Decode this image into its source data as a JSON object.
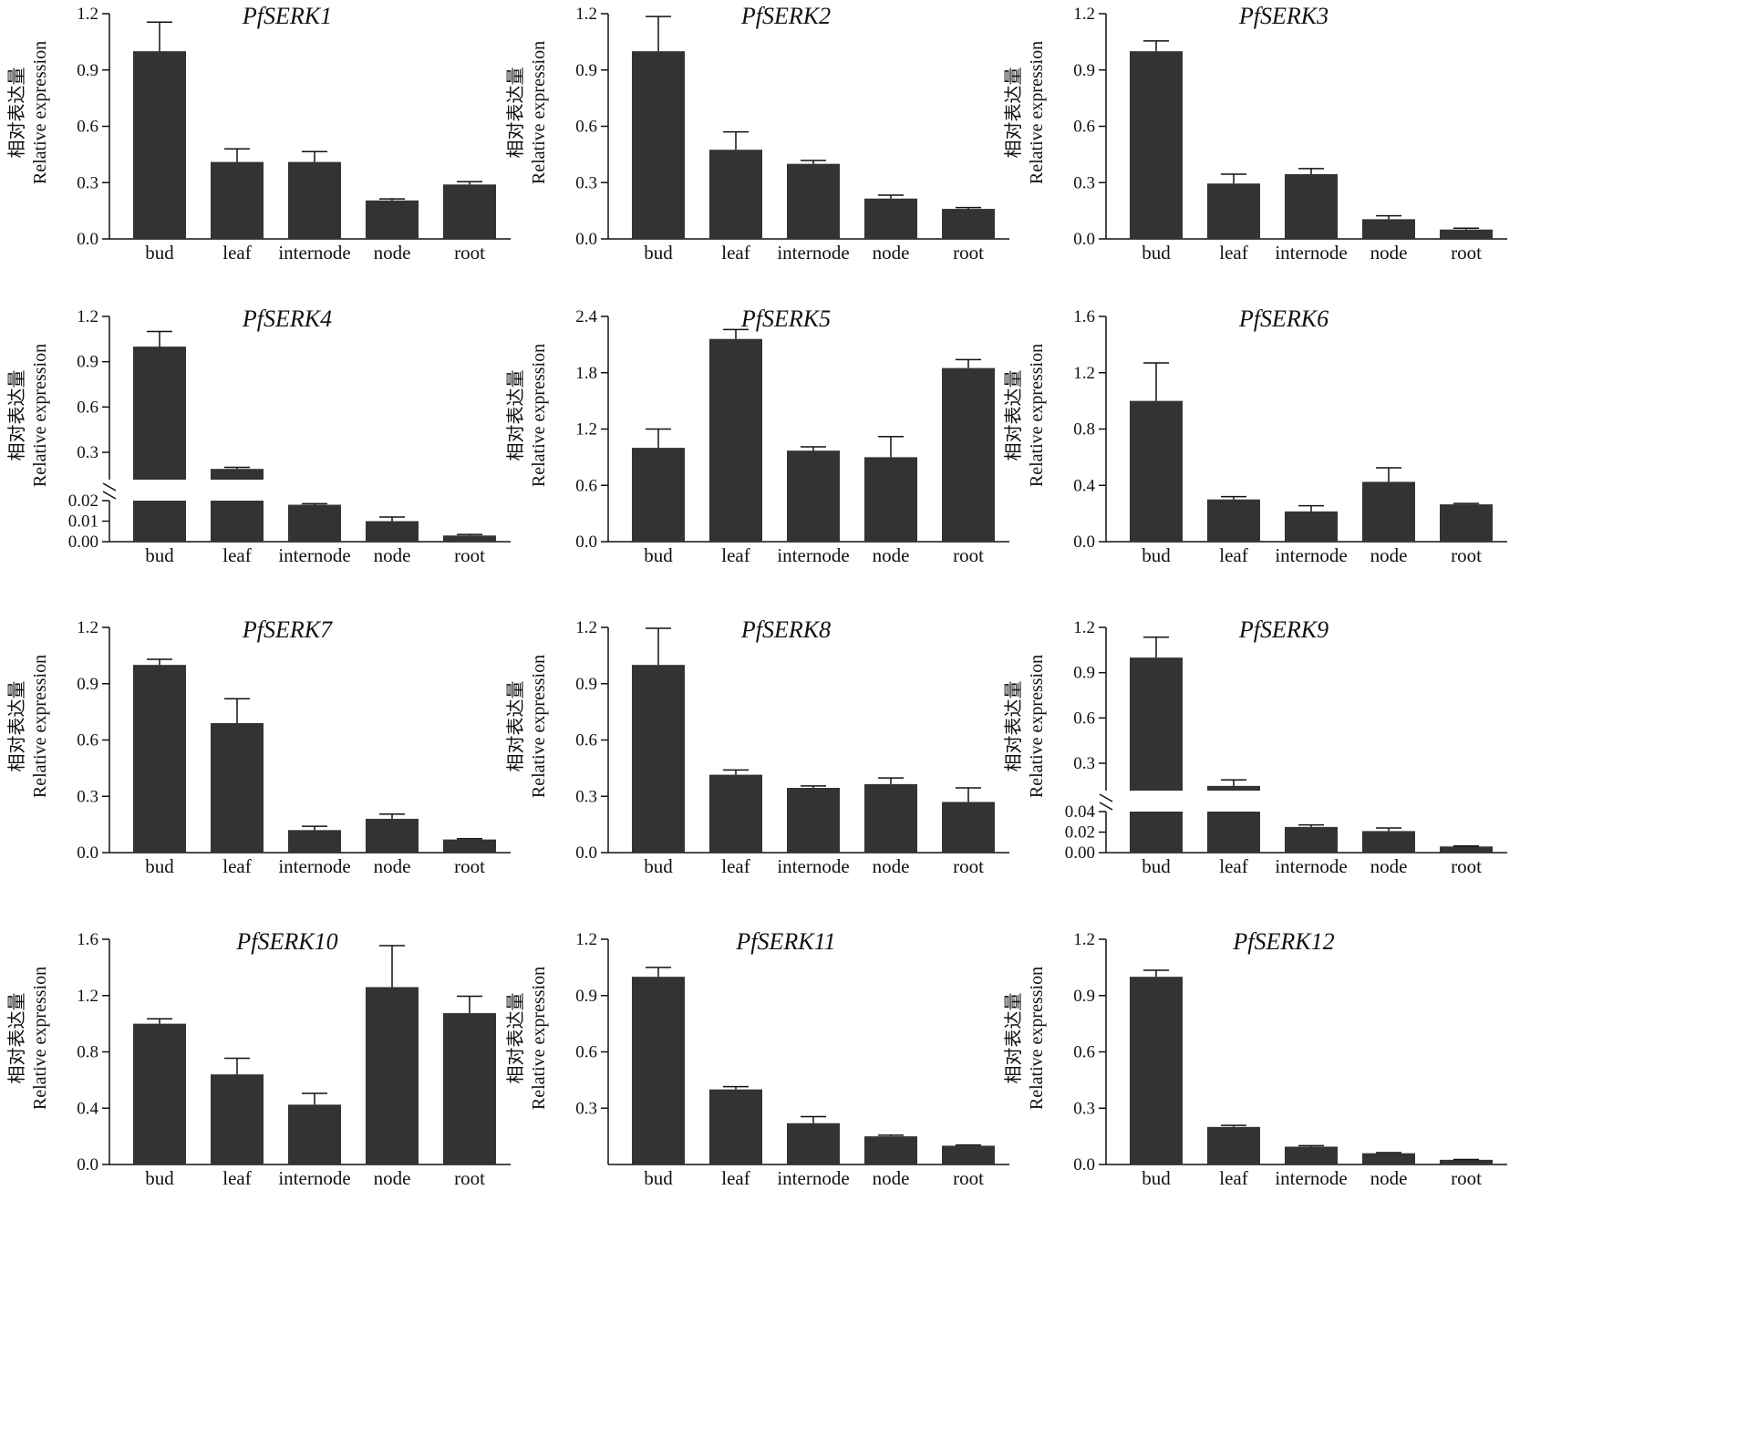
{
  "figure": {
    "ylabel_cn": "相对表达量",
    "ylabel_en": "Relative expression",
    "categories": [
      "bud",
      "leaf",
      "internode",
      "node",
      "root"
    ]
  },
  "chart_data": [
    {
      "type": "bar",
      "title": "PfSERK1",
      "categories": [
        "bud",
        "leaf",
        "internode",
        "node",
        "root"
      ],
      "values": [
        1.0,
        0.41,
        0.41,
        0.205,
        0.29
      ],
      "errors": [
        0.155,
        0.07,
        0.055,
        0.008,
        0.015
      ],
      "ylim": [
        0,
        1.2
      ],
      "yticks": [
        "0.0",
        "0.3",
        "0.6",
        "0.9",
        "1.2"
      ],
      "xlabel": "",
      "ylabel": "相对表达量 Relative expression"
    },
    {
      "type": "bar",
      "title": "PfSERK2",
      "categories": [
        "bud",
        "leaf",
        "internode",
        "node",
        "root"
      ],
      "values": [
        1.0,
        0.475,
        0.4,
        0.215,
        0.16
      ],
      "errors": [
        0.185,
        0.095,
        0.018,
        0.018,
        0.007
      ],
      "ylim": [
        0,
        1.2
      ],
      "yticks": [
        "0.0",
        "0.3",
        "0.6",
        "0.9",
        "1.2"
      ],
      "xlabel": "",
      "ylabel": "相对表达量 Relative expression"
    },
    {
      "type": "bar",
      "title": "PfSERK3",
      "categories": [
        "bud",
        "leaf",
        "internode",
        "node",
        "root"
      ],
      "values": [
        1.0,
        0.295,
        0.345,
        0.105,
        0.05
      ],
      "errors": [
        0.055,
        0.05,
        0.03,
        0.018,
        0.007
      ],
      "ylim": [
        0,
        1.2
      ],
      "yticks": [
        "0.0",
        "0.3",
        "0.6",
        "0.9",
        "1.2"
      ],
      "xlabel": "",
      "ylabel": "相对表达量 Relative expression"
    },
    {
      "type": "bar",
      "title": "PfSERK4",
      "categories": [
        "bud",
        "leaf",
        "internode",
        "node",
        "root"
      ],
      "values": [
        1.0,
        0.19,
        0.018,
        0.01,
        0.003
      ],
      "errors": [
        0.1,
        0.01,
        0.0005,
        0.002,
        0.0005
      ],
      "broken_axis": {
        "lower": [
          0,
          0.02
        ],
        "upper": [
          0,
          1.2
        ]
      },
      "yticks_lower": [
        "0.00",
        "0.01",
        "0.02"
      ],
      "yticks_upper": [
        "0.3",
        "0.6",
        "0.9",
        "1.2"
      ],
      "xlabel": "",
      "ylabel": "相对表达量 Relative expression"
    },
    {
      "type": "bar",
      "title": "PfSERK5",
      "categories": [
        "bud",
        "leaf",
        "internode",
        "node",
        "root"
      ],
      "values": [
        1.0,
        2.16,
        0.97,
        0.9,
        1.85
      ],
      "errors": [
        0.2,
        0.1,
        0.04,
        0.22,
        0.09
      ],
      "ylim": [
        0,
        2.4
      ],
      "yticks": [
        "0.0",
        "0.6",
        "1.2",
        "1.8",
        "2.4"
      ],
      "xlabel": "",
      "ylabel": "相对表达量 Relative expression"
    },
    {
      "type": "bar",
      "title": "PfSERK6",
      "categories": [
        "bud",
        "leaf",
        "internode",
        "node",
        "root"
      ],
      "values": [
        1.0,
        0.3,
        0.215,
        0.425,
        0.265
      ],
      "errors": [
        0.27,
        0.02,
        0.04,
        0.1,
        0.006
      ],
      "ylim": [
        0,
        1.6
      ],
      "yticks": [
        "0.0",
        "0.4",
        "0.8",
        "1.2",
        "1.6"
      ],
      "xlabel": "",
      "ylabel": "相对表达量 Relative expression"
    },
    {
      "type": "bar",
      "title": "PfSERK7",
      "categories": [
        "bud",
        "leaf",
        "internode",
        "node",
        "root"
      ],
      "values": [
        1.0,
        0.69,
        0.12,
        0.18,
        0.07
      ],
      "errors": [
        0.03,
        0.13,
        0.02,
        0.025,
        0.004
      ],
      "ylim": [
        0,
        1.2
      ],
      "yticks": [
        "0.0",
        "0.3",
        "0.6",
        "0.9",
        "1.2"
      ],
      "xlabel": "",
      "ylabel": "相对表达量 Relative expression"
    },
    {
      "type": "bar",
      "title": "PfSERK8",
      "categories": [
        "bud",
        "leaf",
        "internode",
        "node",
        "root"
      ],
      "values": [
        1.0,
        0.415,
        0.345,
        0.365,
        0.27
      ],
      "errors": [
        0.195,
        0.025,
        0.01,
        0.033,
        0.075
      ],
      "ylim": [
        0,
        1.2
      ],
      "yticks": [
        "0.0",
        "0.3",
        "0.6",
        "0.9",
        "1.2"
      ],
      "xlabel": "",
      "ylabel": "相对表达量 Relative expression"
    },
    {
      "type": "bar",
      "title": "PfSERK9",
      "categories": [
        "bud",
        "leaf",
        "internode",
        "node",
        "root"
      ],
      "values": [
        1.0,
        0.15,
        0.025,
        0.021,
        0.006
      ],
      "errors": [
        0.135,
        0.04,
        0.002,
        0.003,
        0.0005
      ],
      "broken_axis": {
        "lower": [
          0,
          0.04
        ],
        "upper": [
          0,
          1.2
        ]
      },
      "yticks_lower": [
        "0.00",
        "0.02",
        "0.04"
      ],
      "yticks_upper": [
        "0.3",
        "0.6",
        "0.9",
        "1.2"
      ],
      "xlabel": "",
      "ylabel": "相对表达量 Relative expression"
    },
    {
      "type": "bar",
      "title": "PfSERK10",
      "categories": [
        "bud",
        "leaf",
        "internode",
        "node",
        "root"
      ],
      "values": [
        1.0,
        0.64,
        0.425,
        1.26,
        1.075
      ],
      "errors": [
        0.035,
        0.115,
        0.08,
        0.295,
        0.12
      ],
      "ylim": [
        0,
        1.6
      ],
      "yticks": [
        "0.0",
        "0.4",
        "0.8",
        "1.2",
        "1.6"
      ],
      "xlabel": "",
      "ylabel": "相对表达量 Relative expression"
    },
    {
      "type": "bar",
      "title": "PfSERK11",
      "categories": [
        "bud",
        "leaf",
        "internode",
        "node",
        "root"
      ],
      "values": [
        1.0,
        0.4,
        0.22,
        0.15,
        0.1
      ],
      "errors": [
        0.05,
        0.015,
        0.035,
        0.006,
        0.004
      ],
      "ylim": [
        0,
        1.2
      ],
      "yticks": [
        "0.3",
        "0.6",
        "0.9",
        "1.2"
      ],
      "xlabel": "",
      "ylabel": "相对表达量 Relative expression"
    },
    {
      "type": "bar",
      "title": "PfSERK12",
      "categories": [
        "bud",
        "leaf",
        "internode",
        "node",
        "root"
      ],
      "values": [
        1.0,
        0.2,
        0.095,
        0.06,
        0.025
      ],
      "errors": [
        0.035,
        0.008,
        0.005,
        0.003,
        0.002
      ],
      "ylim": [
        0,
        1.2
      ],
      "yticks": [
        "0.0",
        "0.3",
        "0.6",
        "0.9",
        "1.2"
      ],
      "xlabel": "",
      "ylabel": "相对表达量 Relative expression"
    }
  ],
  "colors": {
    "bar": "#333333",
    "axis": "#111111",
    "text": "#111111"
  }
}
